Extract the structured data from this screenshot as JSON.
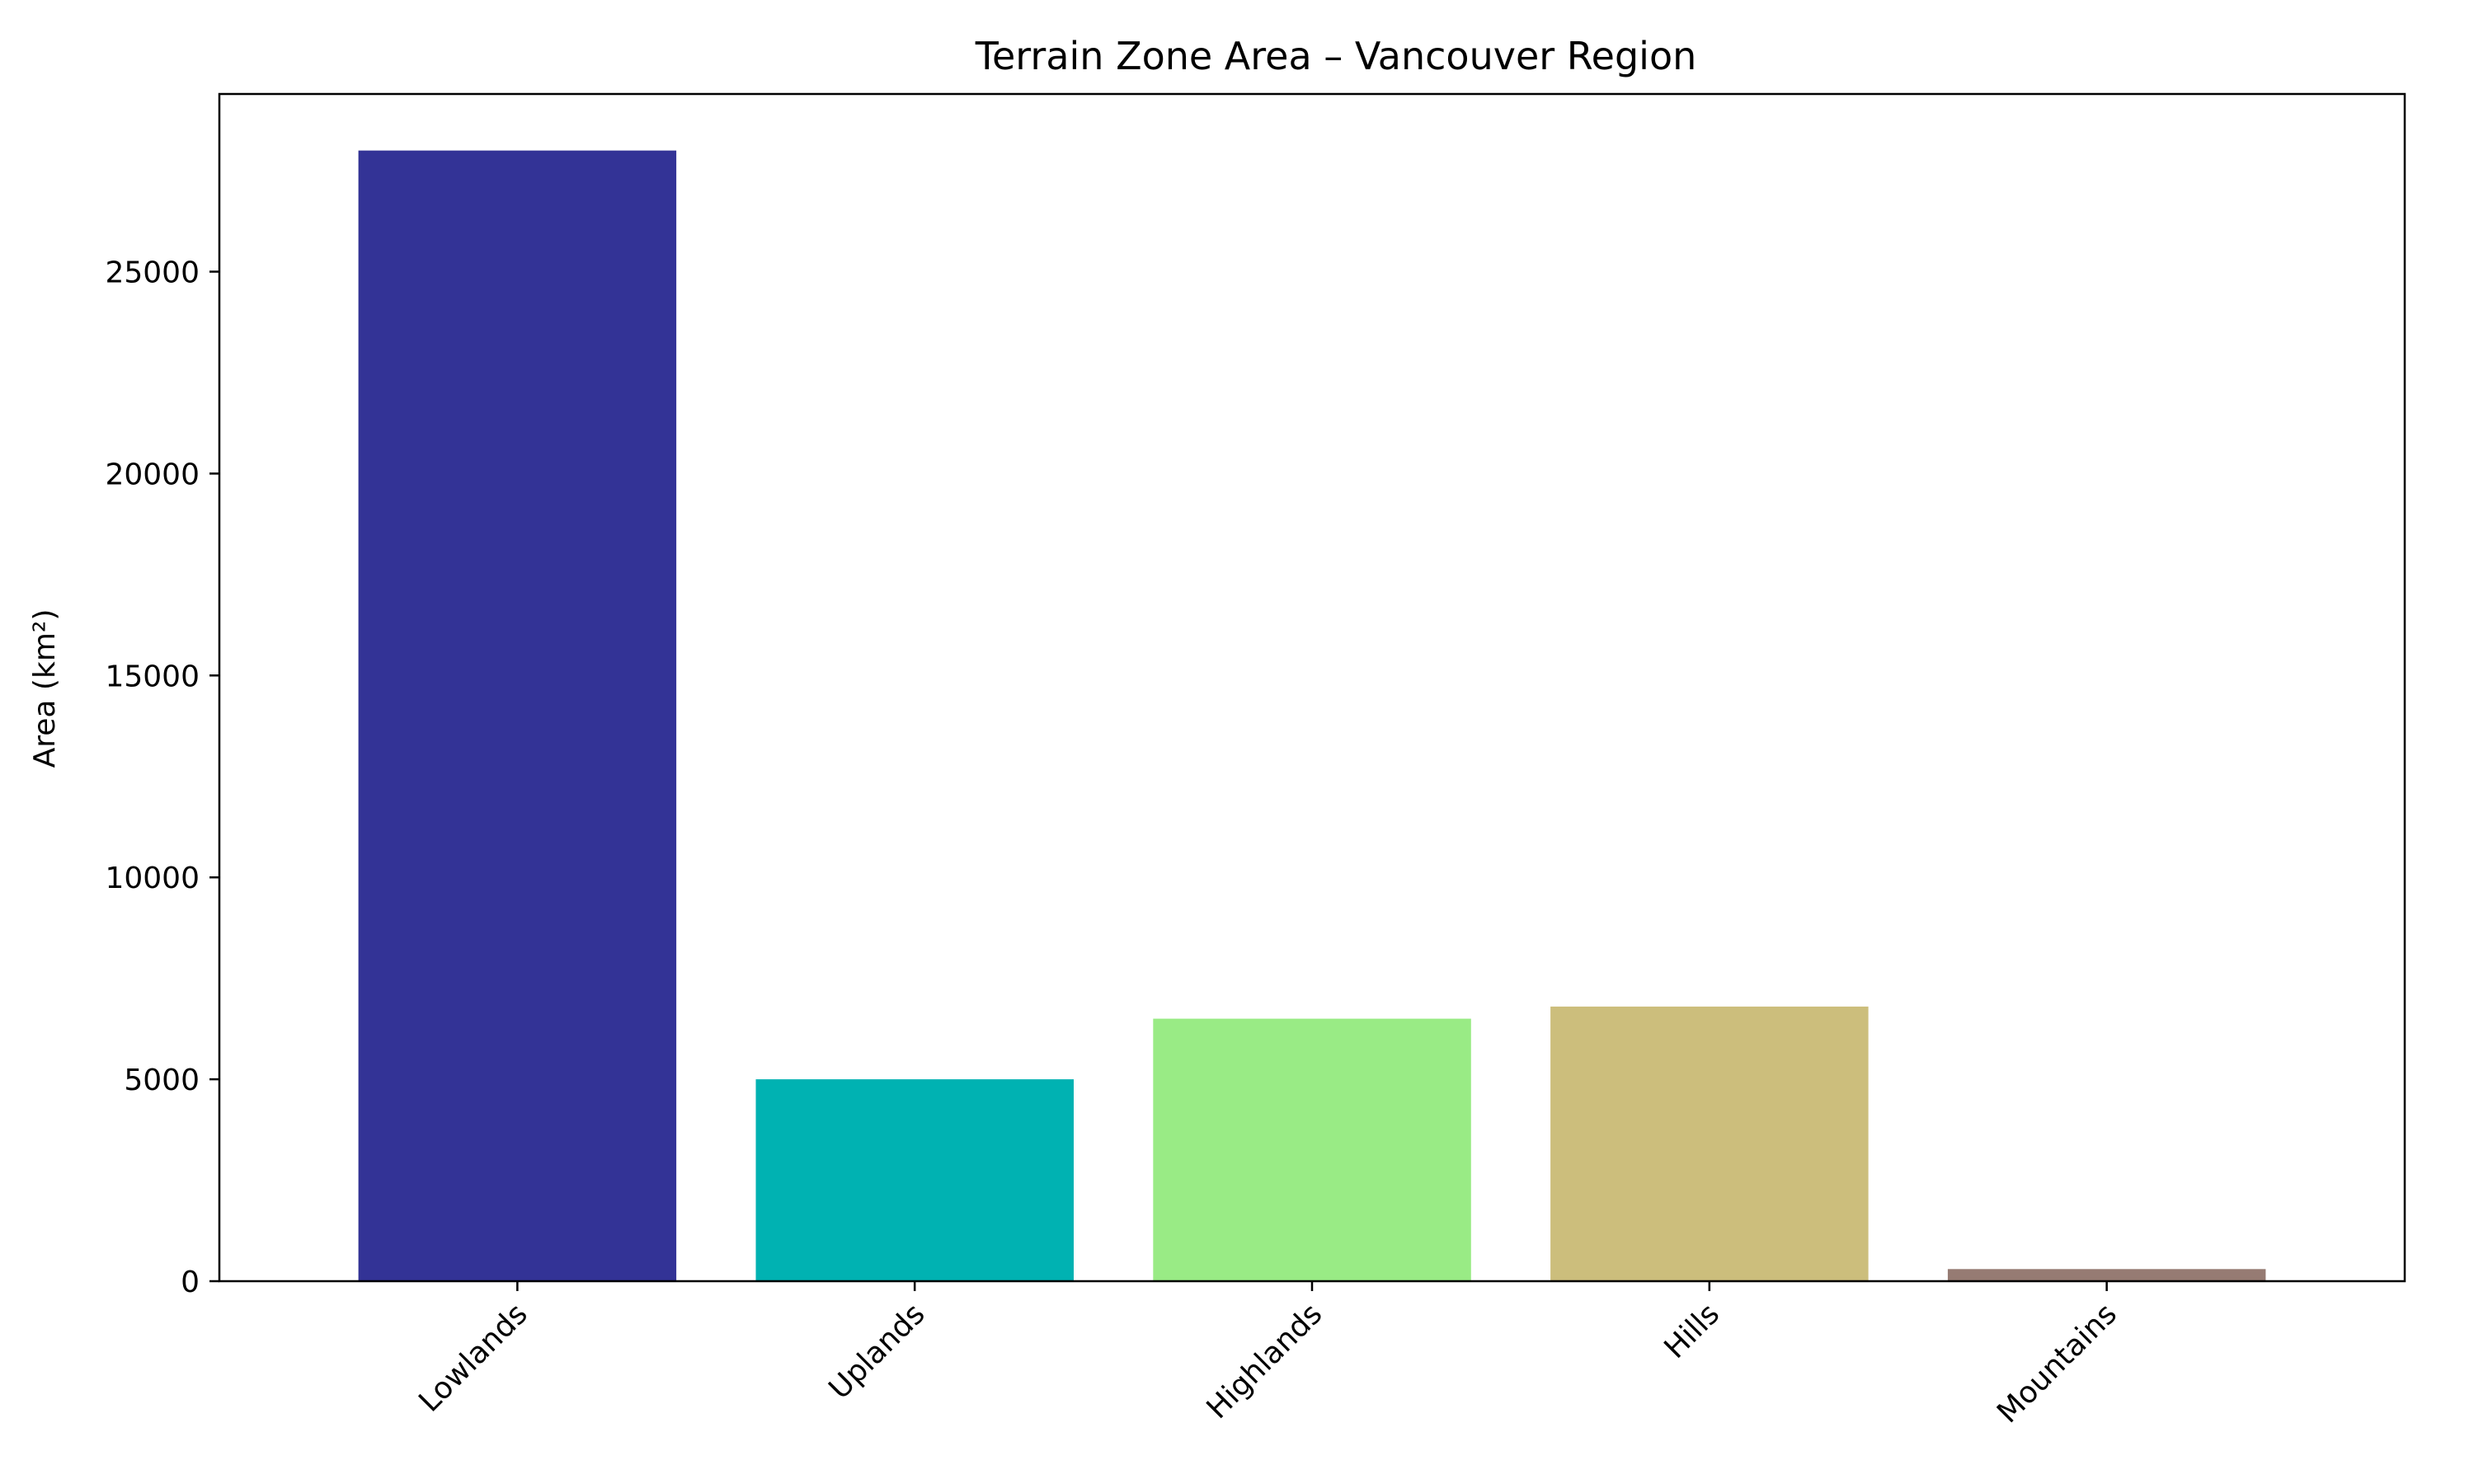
{
  "chart_data": {
    "type": "bar",
    "title": "Terrain Zone Area – Vancouver Region",
    "xlabel": "",
    "ylabel": "Area (km²)",
    "categories": [
      "Lowlands",
      "Uplands",
      "Highlands",
      "Hills",
      "Mountains"
    ],
    "values": [
      28000,
      5000,
      6500,
      6800,
      300
    ],
    "colors": [
      "#333396",
      "#00b2b2",
      "#99eb85",
      "#ccbe7c",
      "#967b73"
    ],
    "ylim": [
      0,
      29400
    ],
    "yticks": [
      0,
      5000,
      10000,
      15000,
      20000,
      25000
    ],
    "grid": false,
    "legend": "none",
    "x_tick_rotation_deg": 45
  }
}
